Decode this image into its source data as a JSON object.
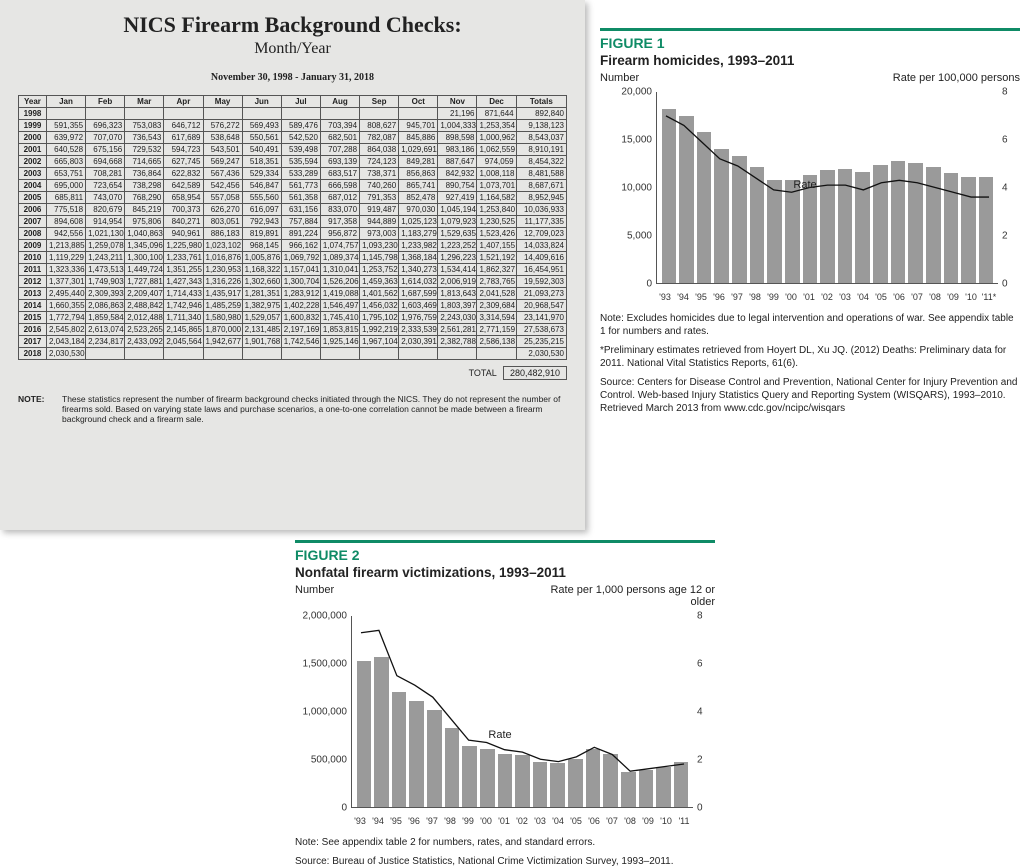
{
  "nics": {
    "title": "NICS Firearm Background Checks:",
    "subtitle": "Month/Year",
    "date_range": "November 30, 1998 - January 31, 2018",
    "columns": [
      "Year",
      "Jan",
      "Feb",
      "Mar",
      "Apr",
      "May",
      "Jun",
      "Jul",
      "Aug",
      "Sep",
      "Oct",
      "Nov",
      "Dec",
      "Totals"
    ],
    "rows": [
      {
        "year": "1998",
        "v": [
          "",
          "",
          "",
          "",
          "",
          "",
          "",
          "",
          "",
          "",
          "21,196",
          "871,644",
          "892,840"
        ]
      },
      {
        "year": "1999",
        "v": [
          "591,355",
          "696,323",
          "753,083",
          "646,712",
          "576,272",
          "569,493",
          "589,476",
          "703,394",
          "808,627",
          "945,701",
          "1,004,333",
          "1,253,354",
          "9,138,123"
        ]
      },
      {
        "year": "2000",
        "v": [
          "639,972",
          "707,070",
          "736,543",
          "617,689",
          "538,648",
          "550,561",
          "542,520",
          "682,501",
          "782,087",
          "845,886",
          "898,598",
          "1,000,962",
          "8,543,037"
        ]
      },
      {
        "year": "2001",
        "v": [
          "640,528",
          "675,156",
          "729,532",
          "594,723",
          "543,501",
          "540,491",
          "539,498",
          "707,288",
          "864,038",
          "1,029,691",
          "983,186",
          "1,062,559",
          "8,910,191"
        ]
      },
      {
        "year": "2002",
        "v": [
          "665,803",
          "694,668",
          "714,665",
          "627,745",
          "569,247",
          "518,351",
          "535,594",
          "693,139",
          "724,123",
          "849,281",
          "887,647",
          "974,059",
          "8,454,322"
        ]
      },
      {
        "year": "2003",
        "v": [
          "653,751",
          "708,281",
          "736,864",
          "622,832",
          "567,436",
          "529,334",
          "533,289",
          "683,517",
          "738,371",
          "856,863",
          "842,932",
          "1,008,118",
          "8,481,588"
        ]
      },
      {
        "year": "2004",
        "v": [
          "695,000",
          "723,654",
          "738,298",
          "642,589",
          "542,456",
          "546,847",
          "561,773",
          "666,598",
          "740,260",
          "865,741",
          "890,754",
          "1,073,701",
          "8,687,671"
        ]
      },
      {
        "year": "2005",
        "v": [
          "685,811",
          "743,070",
          "768,290",
          "658,954",
          "557,058",
          "555,560",
          "561,358",
          "687,012",
          "791,353",
          "852,478",
          "927,419",
          "1,164,582",
          "8,952,945"
        ]
      },
      {
        "year": "2006",
        "v": [
          "775,518",
          "820,679",
          "845,219",
          "700,373",
          "626,270",
          "616,097",
          "631,156",
          "833,070",
          "919,487",
          "970,030",
          "1,045,194",
          "1,253,840",
          "10,036,933"
        ]
      },
      {
        "year": "2007",
        "v": [
          "894,608",
          "914,954",
          "975,806",
          "840,271",
          "803,051",
          "792,943",
          "757,884",
          "917,358",
          "944,889",
          "1,025,123",
          "1,079,923",
          "1,230,525",
          "11,177,335"
        ]
      },
      {
        "year": "2008",
        "v": [
          "942,556",
          "1,021,130",
          "1,040,863",
          "940,961",
          "886,183",
          "819,891",
          "891,224",
          "956,872",
          "973,003",
          "1,183,279",
          "1,529,635",
          "1,523,426",
          "12,709,023"
        ]
      },
      {
        "year": "2009",
        "v": [
          "1,213,885",
          "1,259,078",
          "1,345,096",
          "1,225,980",
          "1,023,102",
          "968,145",
          "966,162",
          "1,074,757",
          "1,093,230",
          "1,233,982",
          "1,223,252",
          "1,407,155",
          "14,033,824"
        ]
      },
      {
        "year": "2010",
        "v": [
          "1,119,229",
          "1,243,211",
          "1,300,100",
          "1,233,761",
          "1,016,876",
          "1,005,876",
          "1,069,792",
          "1,089,374",
          "1,145,798",
          "1,368,184",
          "1,296,223",
          "1,521,192",
          "14,409,616"
        ]
      },
      {
        "year": "2011",
        "v": [
          "1,323,336",
          "1,473,513",
          "1,449,724",
          "1,351,255",
          "1,230,953",
          "1,168,322",
          "1,157,041",
          "1,310,041",
          "1,253,752",
          "1,340,273",
          "1,534,414",
          "1,862,327",
          "16,454,951"
        ]
      },
      {
        "year": "2012",
        "v": [
          "1,377,301",
          "1,749,903",
          "1,727,881",
          "1,427,343",
          "1,316,226",
          "1,302,660",
          "1,300,704",
          "1,526,206",
          "1,459,363",
          "1,614,032",
          "2,006,919",
          "2,783,765",
          "19,592,303"
        ]
      },
      {
        "year": "2013",
        "v": [
          "2,495,440",
          "2,309,393",
          "2,209,407",
          "1,714,433",
          "1,435,917",
          "1,281,351",
          "1,283,912",
          "1,419,088",
          "1,401,562",
          "1,687,599",
          "1,813,643",
          "2,041,528",
          "21,093,273"
        ]
      },
      {
        "year": "2014",
        "v": [
          "1,660,355",
          "2,086,863",
          "2,488,842",
          "1,742,946",
          "1,485,259",
          "1,382,975",
          "1,402,228",
          "1,546,497",
          "1,456,032",
          "1,603,469",
          "1,803,397",
          "2,309,684",
          "20,968,547"
        ]
      },
      {
        "year": "2015",
        "v": [
          "1,772,794",
          "1,859,584",
          "2,012,488",
          "1,711,340",
          "1,580,980",
          "1,529,057",
          "1,600,832",
          "1,745,410",
          "1,795,102",
          "1,976,759",
          "2,243,030",
          "3,314,594",
          "23,141,970"
        ]
      },
      {
        "year": "2016",
        "v": [
          "2,545,802",
          "2,613,074",
          "2,523,265",
          "2,145,865",
          "1,870,000",
          "2,131,485",
          "2,197,169",
          "1,853,815",
          "1,992,219",
          "2,333,539",
          "2,561,281",
          "2,771,159",
          "27,538,673"
        ]
      },
      {
        "year": "2017",
        "v": [
          "2,043,184",
          "2,234,817",
          "2,433,092",
          "2,045,564",
          "1,942,677",
          "1,901,768",
          "1,742,546",
          "1,925,146",
          "1,967,104",
          "2,030,391",
          "2,382,788",
          "2,586,138",
          "25,235,215"
        ]
      },
      {
        "year": "2018",
        "v": [
          "2,030,530",
          "",
          "",
          "",
          "",
          "",
          "",
          "",
          "",
          "",
          "",
          "",
          "2,030,530"
        ]
      }
    ],
    "grand_total_label": "TOTAL",
    "grand_total": "280,482,910",
    "note_label": "NOTE:",
    "note_text": "These statistics represent the number of firearm background checks initiated through the NICS. They do not represent the number of firearms sold. Based on varying state laws and purchase scenarios, a one-to-one correlation cannot be made between a firearm background check and a firearm sale."
  },
  "fig1": {
    "label": "FIGURE 1",
    "title": "Firearm homicides, 1993–2011",
    "y_left_label": "Number",
    "y_right_label": "Rate per 100,000 persons",
    "y_left_max": 20000,
    "y_left_step": 5000,
    "y_right_max": 8,
    "y_right_step": 2,
    "years": [
      "'93",
      "'94",
      "'95",
      "'96",
      "'97",
      "'98",
      "'99",
      "'00",
      "'01",
      "'02",
      "'03",
      "'04",
      "'05",
      "'06",
      "'07",
      "'08",
      "'09",
      "'10",
      "'11*"
    ],
    "bars": [
      18250,
      17500,
      15800,
      14000,
      13250,
      12100,
      10800,
      10800,
      11300,
      11800,
      11900,
      11600,
      12350,
      12800,
      12600,
      12200,
      11500,
      11100,
      11100
    ],
    "rate": [
      7.0,
      6.6,
      5.9,
      5.2,
      4.9,
      4.4,
      3.9,
      3.8,
      4.0,
      4.1,
      4.1,
      3.9,
      4.2,
      4.3,
      4.2,
      4.0,
      3.8,
      3.6,
      3.6
    ],
    "rate_tag": "Rate",
    "bar_color": "#9a9a9a",
    "line_color": "#111",
    "accent": "#0f8b66",
    "note1": "Note: Excludes homicides due to legal intervention and operations of war. See appendix table 1 for numbers and rates.",
    "note2": "*Preliminary estimates retrieved from Hoyert DL, Xu JQ. (2012) Deaths: Preliminary data for 2011. National Vital Statistics Reports, 61(6).",
    "note3": "Source: Centers for Disease Control and Prevention, National Center for Injury Prevention and Control. Web-based Injury Statistics Query and Reporting System (WISQARS), 1993–2010. Retrieved March 2013 from www.cdc.gov/ncipc/wisqars"
  },
  "fig2": {
    "label": "FIGURE 2",
    "title": "Nonfatal firearm victimizations, 1993–2011",
    "y_left_label": "Number",
    "y_right_label": "Rate per 1,000 persons age 12 or older",
    "y_left_max": 2000000,
    "y_left_step": 500000,
    "y_right_max": 8,
    "y_right_step": 2,
    "years": [
      "'93",
      "'94",
      "'95",
      "'96",
      "'97",
      "'98",
      "'99",
      "'00",
      "'01",
      "'02",
      "'03",
      "'04",
      "'05",
      "'06",
      "'07",
      "'08",
      "'09",
      "'10",
      "'11"
    ],
    "bars": [
      1530000,
      1570000,
      1200000,
      1110000,
      1020000,
      830000,
      640000,
      610000,
      560000,
      540000,
      470000,
      460000,
      500000,
      610000,
      550000,
      370000,
      390000,
      420000,
      470000
    ],
    "rate": [
      7.3,
      7.4,
      5.5,
      5.1,
      4.6,
      3.7,
      2.8,
      2.7,
      2.4,
      2.3,
      2.0,
      1.9,
      2.1,
      2.5,
      2.2,
      1.5,
      1.6,
      1.7,
      1.8
    ],
    "rate_tag": "Rate",
    "bar_color": "#9a9a9a",
    "line_color": "#111",
    "accent": "#0f8b66",
    "note1": "Note: See appendix table 2 for numbers, rates, and standard errors.",
    "note2": "Source: Bureau of Justice Statistics, National Crime Victimization Survey, 1993–2011."
  }
}
